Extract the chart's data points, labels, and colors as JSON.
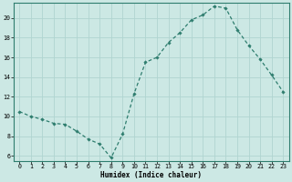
{
  "x": [
    0,
    1,
    2,
    3,
    4,
    5,
    6,
    7,
    8,
    9,
    10,
    11,
    12,
    13,
    14,
    15,
    16,
    17,
    18,
    19,
    20,
    21,
    22,
    23
  ],
  "y": [
    10.5,
    10.0,
    9.7,
    9.3,
    9.2,
    8.5,
    7.7,
    7.2,
    5.8,
    8.2,
    12.3,
    15.5,
    16.0,
    17.5,
    18.5,
    19.8,
    20.3,
    21.2,
    21.0,
    18.8,
    17.2,
    15.8,
    14.2,
    12.5
  ],
  "line_color": "#2e7d6e",
  "marker": "D",
  "marker_size": 1.8,
  "bg_color": "#cce8e4",
  "grid_color": "#b0d4d0",
  "xlabel": "Humidex (Indice chaleur)",
  "ylim": [
    5.5,
    21.5
  ],
  "yticks": [
    6,
    8,
    10,
    12,
    14,
    16,
    18,
    20
  ],
  "xlim": [
    -0.5,
    23.5
  ],
  "xticks": [
    0,
    1,
    2,
    3,
    4,
    5,
    6,
    7,
    8,
    9,
    10,
    11,
    12,
    13,
    14,
    15,
    16,
    17,
    18,
    19,
    20,
    21,
    22,
    23
  ],
  "xlabel_fontsize": 5.5,
  "tick_fontsize": 4.8
}
